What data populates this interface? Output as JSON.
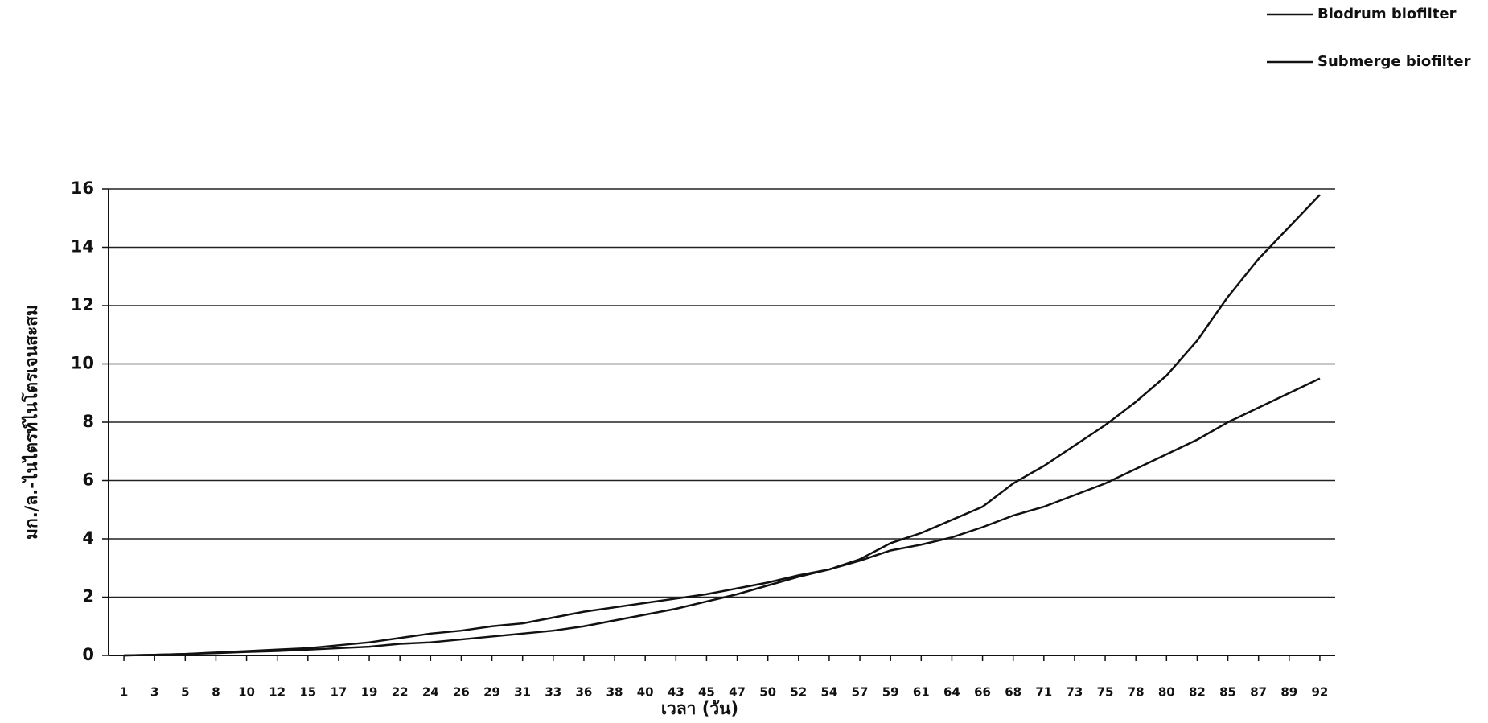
{
  "chart_data": {
    "type": "line",
    "x_label": "เวลา (วัน)",
    "y_label": "มก./ล.-ไนไตรท์ไนโตรเจนสะสม",
    "categories": [
      "1",
      "3",
      "5",
      "8",
      "10",
      "12",
      "15",
      "17",
      "19",
      "22",
      "24",
      "26",
      "29",
      "31",
      "33",
      "36",
      "38",
      "40",
      "43",
      "45",
      "47",
      "50",
      "52",
      "54",
      "57",
      "59",
      "61",
      "64",
      "66",
      "68",
      "71",
      "73",
      "75",
      "78",
      "80",
      "82",
      "85",
      "87",
      "89",
      "92"
    ],
    "series": [
      {
        "name": "Biodrum biofilter",
        "color": "#111111",
        "values": [
          0,
          0.02,
          0.05,
          0.08,
          0.12,
          0.15,
          0.2,
          0.25,
          0.3,
          0.4,
          0.45,
          0.55,
          0.65,
          0.75,
          0.85,
          1.0,
          1.2,
          1.4,
          1.6,
          1.85,
          2.1,
          2.4,
          2.7,
          2.95,
          3.3,
          3.85,
          4.2,
          4.65,
          5.1,
          5.9,
          6.5,
          7.2,
          7.9,
          8.7,
          9.6,
          10.8,
          12.3,
          13.6,
          14.7,
          15.8
        ]
      },
      {
        "name": "Submerge biofilter",
        "color": "#111111",
        "values": [
          0,
          0.02,
          0.05,
          0.1,
          0.15,
          0.2,
          0.25,
          0.35,
          0.45,
          0.6,
          0.75,
          0.85,
          1.0,
          1.1,
          1.3,
          1.5,
          1.65,
          1.8,
          1.95,
          2.1,
          2.3,
          2.5,
          2.75,
          2.95,
          3.25,
          3.6,
          3.8,
          4.05,
          4.4,
          4.8,
          5.1,
          5.5,
          5.9,
          6.4,
          6.9,
          7.4,
          8.0,
          8.5,
          9.0,
          9.5
        ]
      }
    ],
    "ylim": [
      0,
      16
    ],
    "yticks": [
      0,
      2,
      4,
      6,
      8,
      10,
      12,
      14,
      16
    ],
    "grid": true,
    "legend": "upper right"
  }
}
